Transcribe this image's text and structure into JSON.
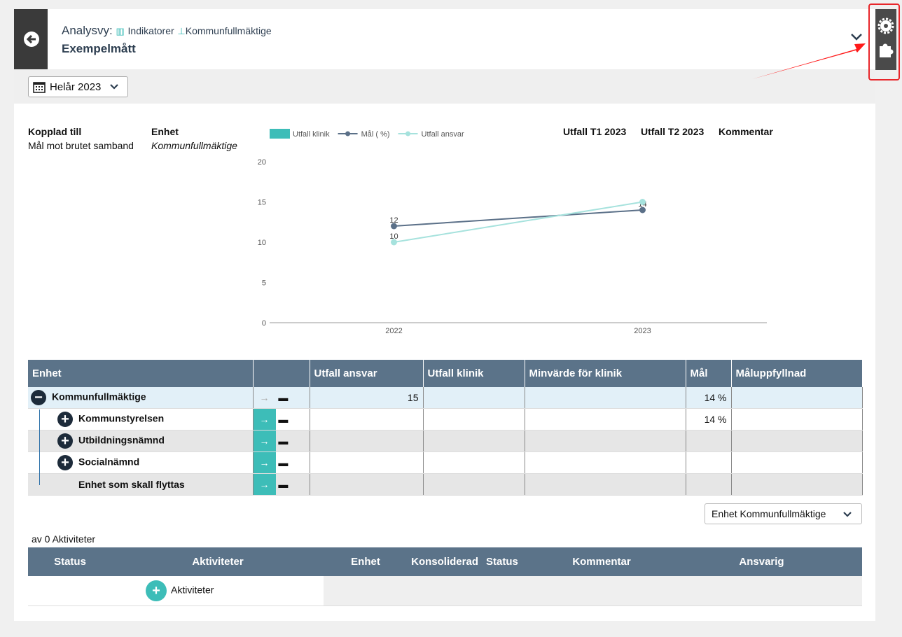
{
  "header": {
    "prefix": "Analysvy:",
    "crumbs": [
      "Indikatorer",
      "Kommunfullmäktige"
    ],
    "title": "Exempelmått"
  },
  "period": "Helår 2023",
  "info": {
    "fields": [
      {
        "label": "Kopplad till",
        "value": "Mål mot brutet samband"
      },
      {
        "label": "Enhet",
        "value": "Kommunfullmäktige"
      }
    ],
    "extra_headers": [
      "Utfall T1 2023",
      "Utfall T2 2023",
      "Kommentar"
    ]
  },
  "chart_data": {
    "type": "line",
    "categories": [
      "2022",
      "2023"
    ],
    "series": [
      {
        "name": "Utfall klinik",
        "color": "#3dbdb8",
        "kind": "bar",
        "values": [
          null,
          null
        ]
      },
      {
        "name": "Mål ( %)",
        "color": "#5b7088",
        "values": [
          12,
          14
        ]
      },
      {
        "name": "Utfall ansvar",
        "color": "#a6e2dd",
        "values": [
          10,
          15
        ]
      }
    ],
    "ylim": [
      0,
      20
    ],
    "yticks": [
      0,
      5,
      10,
      15,
      20
    ],
    "data_labels": true
  },
  "table": {
    "columns": [
      "Enhet",
      "Utfall ansvar",
      "Utfall klinik",
      "Minvärde för klinik",
      "Mål",
      "Måluppfyllnad"
    ],
    "rows": [
      {
        "name": "Kommunfullmäktige",
        "utfall_ansvar": "15",
        "mal": "14 %"
      },
      {
        "name": "Kommunstyrelsen",
        "mal": "14 %"
      },
      {
        "name": "Utbildningsnämnd"
      },
      {
        "name": "Socialnämnd"
      },
      {
        "name": "Enhet som skall flyttas"
      }
    ]
  },
  "unit_select": "Enhet Kommunfullmäktige",
  "activities": {
    "count_text": "av 0 Aktiviteter",
    "columns": [
      "Status",
      "Aktiviteter",
      "Enhet",
      "Konsoliderad",
      "Status",
      "Kommentar",
      "Ansvarig"
    ],
    "add_button": "Aktiviteter"
  }
}
